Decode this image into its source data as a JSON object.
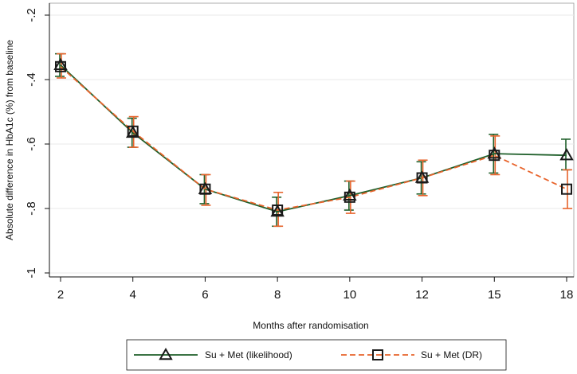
{
  "chart_data": {
    "type": "line",
    "xlabel": "Months after randomisation",
    "ylabel": "Absolute difference in HbA1c (%) from baseline",
    "x": [
      2,
      4,
      6,
      8,
      10,
      12,
      15,
      18
    ],
    "x_tick_labels": [
      "2",
      "4",
      "6",
      "8",
      "10",
      "12",
      "15",
      "18"
    ],
    "ylim": [
      -1.0,
      -0.2
    ],
    "y_ticks": [
      -0.2,
      -0.4,
      -0.6,
      -0.8,
      -1.0
    ],
    "y_tick_labels": [
      "-.2",
      "-.4",
      "-.6",
      "-.8",
      "-1"
    ],
    "grid": true,
    "legend_position": "bottom",
    "series": [
      {
        "name": "Su + Met (likelihood)",
        "marker": "triangle",
        "line_style": "solid",
        "color": "#1f5f2a",
        "values": [
          -0.355,
          -0.565,
          -0.74,
          -0.81,
          -0.76,
          -0.705,
          -0.63,
          -0.635
        ],
        "ci_low": [
          -0.39,
          -0.61,
          -0.785,
          -0.855,
          -0.805,
          -0.755,
          -0.69,
          -0.68
        ],
        "ci_high": [
          -0.32,
          -0.52,
          -0.695,
          -0.765,
          -0.715,
          -0.655,
          -0.57,
          -0.585
        ]
      },
      {
        "name": "Su + Met (DR)",
        "marker": "square",
        "line_style": "dashed",
        "color": "#e8642c",
        "values": [
          -0.36,
          -0.56,
          -0.74,
          -0.805,
          -0.765,
          -0.705,
          -0.635,
          -0.74
        ],
        "ci_low": [
          -0.395,
          -0.61,
          -0.79,
          -0.855,
          -0.815,
          -0.76,
          -0.695,
          -0.8
        ],
        "ci_high": [
          -0.32,
          -0.515,
          -0.695,
          -0.75,
          -0.715,
          -0.65,
          -0.575,
          -0.68
        ]
      }
    ]
  }
}
